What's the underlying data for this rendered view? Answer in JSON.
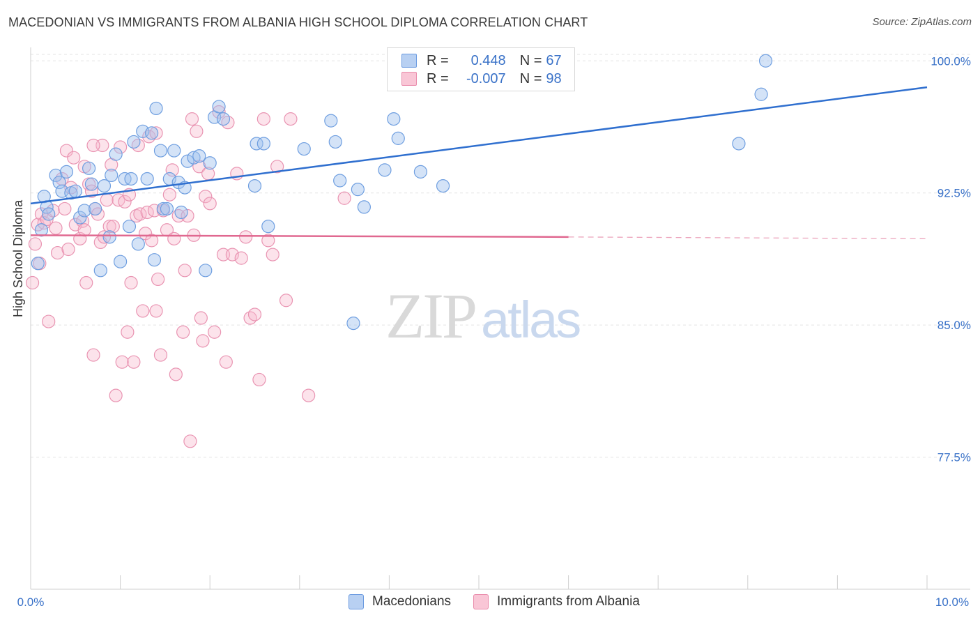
{
  "title": "MACEDONIAN VS IMMIGRANTS FROM ALBANIA HIGH SCHOOL DIPLOMA CORRELATION CHART",
  "source": "Source: ZipAtlas.com",
  "watermark": {
    "zip": "ZIP",
    "atlas": "atlas"
  },
  "legend": {
    "r_label": "R =",
    "n_label": "N =",
    "rows": [
      {
        "name": "Macedonians",
        "r": "0.448",
        "n": "67",
        "fill": "#b8d0f2",
        "stroke": "#6a9ae0"
      },
      {
        "name": "Immigrants from Albania",
        "r": "-0.007",
        "n": "98",
        "fill": "#f9c6d6",
        "stroke": "#e98bab"
      }
    ]
  },
  "colors": {
    "blue_point_fill": "rgba(160,192,238,0.45)",
    "blue_point_stroke": "#6e9ee0",
    "pink_point_fill": "rgba(247,184,205,0.40)",
    "pink_point_stroke": "#e994b2",
    "blue_line": "#2f6fcf",
    "pink_line": "#e06890",
    "axis_text": "#3a72c8",
    "grid": "#e3e3e3"
  },
  "chart_data": {
    "type": "scatter",
    "title": "MACEDONIAN VS IMMIGRANTS FROM ALBANIA HIGH SCHOOL DIPLOMA CORRELATION CHART",
    "xlabel": "",
    "ylabel": "High School Diploma",
    "xlim": [
      0,
      10
    ],
    "ylim": [
      70,
      101
    ],
    "x_tick_labels": [
      "0.0%",
      "10.0%"
    ],
    "y_ticks": [
      77.5,
      85.0,
      92.5,
      100.0
    ],
    "y_tick_labels": [
      "77.5%",
      "85.0%",
      "92.5%",
      "100.0%"
    ],
    "series": [
      {
        "name": "Macedonians",
        "trend": {
          "x0": 0,
          "y0": 91.9,
          "x1": 10.0,
          "y1": 98.5
        },
        "points": [
          [
            0.08,
            88.5
          ],
          [
            0.12,
            90.4
          ],
          [
            0.15,
            92.3
          ],
          [
            0.18,
            91.7
          ],
          [
            0.2,
            91.3
          ],
          [
            0.28,
            93.5
          ],
          [
            0.32,
            93.1
          ],
          [
            0.35,
            92.6
          ],
          [
            0.4,
            93.7
          ],
          [
            0.45,
            92.5
          ],
          [
            0.5,
            92.6
          ],
          [
            0.55,
            91.1
          ],
          [
            0.6,
            91.5
          ],
          [
            0.65,
            93.9
          ],
          [
            0.68,
            93.0
          ],
          [
            0.72,
            91.6
          ],
          [
            0.78,
            88.1
          ],
          [
            0.82,
            92.9
          ],
          [
            0.88,
            90.0
          ],
          [
            0.9,
            93.5
          ],
          [
            0.95,
            94.7
          ],
          [
            1.0,
            88.6
          ],
          [
            1.05,
            93.3
          ],
          [
            1.1,
            90.6
          ],
          [
            1.12,
            93.3
          ],
          [
            1.15,
            95.4
          ],
          [
            1.2,
            89.6
          ],
          [
            1.25,
            96.0
          ],
          [
            1.3,
            93.3
          ],
          [
            1.35,
            95.9
          ],
          [
            1.38,
            88.7
          ],
          [
            1.4,
            97.3
          ],
          [
            1.45,
            94.9
          ],
          [
            1.48,
            91.6
          ],
          [
            1.52,
            91.6
          ],
          [
            1.55,
            93.3
          ],
          [
            1.6,
            94.9
          ],
          [
            1.65,
            93.1
          ],
          [
            1.68,
            91.4
          ],
          [
            1.72,
            92.8
          ],
          [
            1.75,
            94.3
          ],
          [
            1.82,
            94.5
          ],
          [
            1.88,
            94.6
          ],
          [
            1.95,
            88.1
          ],
          [
            2.0,
            94.2
          ],
          [
            2.05,
            96.8
          ],
          [
            2.1,
            97.4
          ],
          [
            2.15,
            96.7
          ],
          [
            2.5,
            92.9
          ],
          [
            2.52,
            95.3
          ],
          [
            2.6,
            95.3
          ],
          [
            2.65,
            90.6
          ],
          [
            3.05,
            95.0
          ],
          [
            3.35,
            96.6
          ],
          [
            3.4,
            95.4
          ],
          [
            3.45,
            93.2
          ],
          [
            3.6,
            85.1
          ],
          [
            3.65,
            92.7
          ],
          [
            3.72,
            91.7
          ],
          [
            3.95,
            93.8
          ],
          [
            4.05,
            96.7
          ],
          [
            4.1,
            95.6
          ],
          [
            4.35,
            93.7
          ],
          [
            4.6,
            92.9
          ],
          [
            7.9,
            95.3
          ],
          [
            8.15,
            98.1
          ],
          [
            8.2,
            100.0
          ]
        ]
      },
      {
        "name": "Immigrants from Albania",
        "trend": {
          "x0": 0,
          "y0": 90.1,
          "x1": 6.0,
          "y1": 90.0,
          "dash_x1": 10.0,
          "dash_y1": 89.9
        },
        "points": [
          [
            0.02,
            87.4
          ],
          [
            0.05,
            89.6
          ],
          [
            0.08,
            90.7
          ],
          [
            0.1,
            88.5
          ],
          [
            0.12,
            91.3
          ],
          [
            0.15,
            90.8
          ],
          [
            0.18,
            91.0
          ],
          [
            0.2,
            85.2
          ],
          [
            0.25,
            91.5
          ],
          [
            0.28,
            90.5
          ],
          [
            0.3,
            89.1
          ],
          [
            0.35,
            93.3
          ],
          [
            0.38,
            91.6
          ],
          [
            0.4,
            94.9
          ],
          [
            0.42,
            89.3
          ],
          [
            0.45,
            92.8
          ],
          [
            0.48,
            94.5
          ],
          [
            0.5,
            90.7
          ],
          [
            0.55,
            89.9
          ],
          [
            0.58,
            90.9
          ],
          [
            0.6,
            94.0
          ],
          [
            0.62,
            87.4
          ],
          [
            0.65,
            93.0
          ],
          [
            0.68,
            92.6
          ],
          [
            0.7,
            83.3
          ],
          [
            0.72,
            91.6
          ],
          [
            0.75,
            91.3
          ],
          [
            0.78,
            89.7
          ],
          [
            0.8,
            95.2
          ],
          [
            0.82,
            90.0
          ],
          [
            0.85,
            92.1
          ],
          [
            0.88,
            90.6
          ],
          [
            0.9,
            94.1
          ],
          [
            0.92,
            90.6
          ],
          [
            0.95,
            81.0
          ],
          [
            0.98,
            92.1
          ],
          [
            1.0,
            95.1
          ],
          [
            1.02,
            82.9
          ],
          [
            1.05,
            92.0
          ],
          [
            1.08,
            84.6
          ],
          [
            1.1,
            92.4
          ],
          [
            1.12,
            87.4
          ],
          [
            1.15,
            82.9
          ],
          [
            1.18,
            91.2
          ],
          [
            1.2,
            95.2
          ],
          [
            1.22,
            91.3
          ],
          [
            1.25,
            85.8
          ],
          [
            1.28,
            90.2
          ],
          [
            1.3,
            91.4
          ],
          [
            1.32,
            95.7
          ],
          [
            1.35,
            89.8
          ],
          [
            1.38,
            91.5
          ],
          [
            1.4,
            85.8
          ],
          [
            1.42,
            87.6
          ],
          [
            1.45,
            83.3
          ],
          [
            1.48,
            91.5
          ],
          [
            1.52,
            90.4
          ],
          [
            1.55,
            92.4
          ],
          [
            1.58,
            93.8
          ],
          [
            1.6,
            89.9
          ],
          [
            1.62,
            82.2
          ],
          [
            1.65,
            91.2
          ],
          [
            1.7,
            84.6
          ],
          [
            1.72,
            88.1
          ],
          [
            1.75,
            91.2
          ],
          [
            1.78,
            78.4
          ],
          [
            1.8,
            96.7
          ],
          [
            1.82,
            90.1
          ],
          [
            1.85,
            96.0
          ],
          [
            1.88,
            94.0
          ],
          [
            1.9,
            85.4
          ],
          [
            1.92,
            84.1
          ],
          [
            1.95,
            92.3
          ],
          [
            1.98,
            93.6
          ],
          [
            2.0,
            91.9
          ],
          [
            2.05,
            84.6
          ],
          [
            2.1,
            97.1
          ],
          [
            2.15,
            89.0
          ],
          [
            2.18,
            82.9
          ],
          [
            2.2,
            96.5
          ],
          [
            2.25,
            89.0
          ],
          [
            2.3,
            93.6
          ],
          [
            2.35,
            88.8
          ],
          [
            2.4,
            90.0
          ],
          [
            2.45,
            85.4
          ],
          [
            2.5,
            85.6
          ],
          [
            2.55,
            81.9
          ],
          [
            2.6,
            96.7
          ],
          [
            2.65,
            89.8
          ],
          [
            2.7,
            89.0
          ],
          [
            2.75,
            94.0
          ],
          [
            2.85,
            86.4
          ],
          [
            3.1,
            81.0
          ],
          [
            3.5,
            92.2
          ],
          [
            0.6,
            90.4
          ],
          [
            0.7,
            95.2
          ],
          [
            1.4,
            95.9
          ],
          [
            2.9,
            96.7
          ]
        ]
      }
    ]
  }
}
